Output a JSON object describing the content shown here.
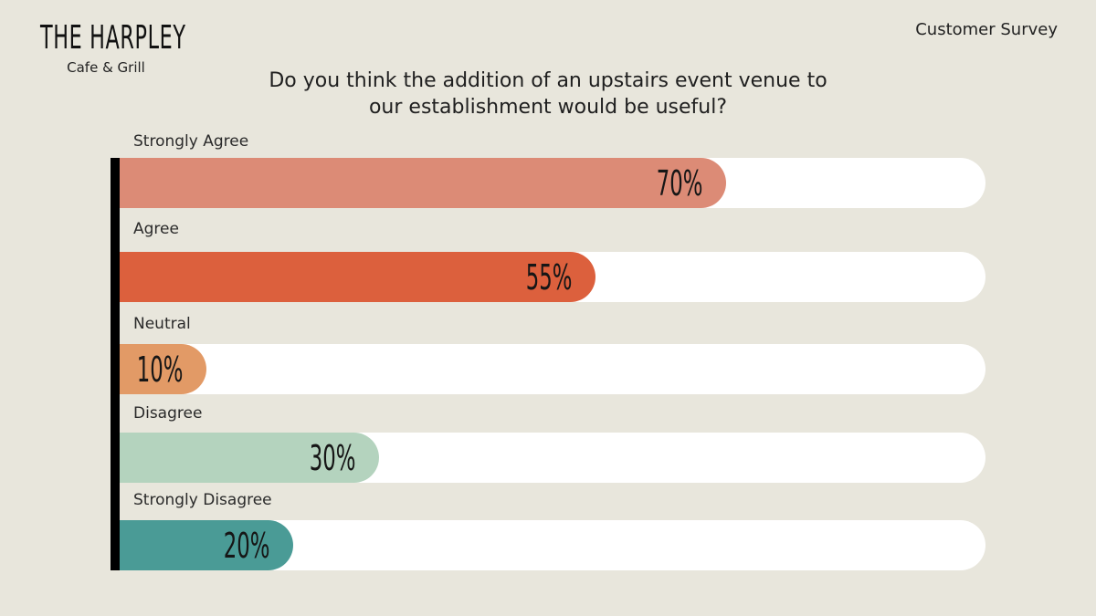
{
  "brand": {
    "name": "THE HARPLEY",
    "tagline": "Cafe & Grill"
  },
  "header": {
    "survey_label": "Customer Survey"
  },
  "question": {
    "line1": "Do you think the addition of an upstairs event venue to",
    "line2": "our establishment would be useful?"
  },
  "chart_data": {
    "type": "bar",
    "orientation": "horizontal",
    "categories": [
      "Strongly Agree",
      "Agree",
      "Neutral",
      "Disagree",
      "Strongly Disagree"
    ],
    "values": [
      70,
      55,
      10,
      30,
      20
    ],
    "value_labels": [
      "70%",
      "55%",
      "10%",
      "30%",
      "20%"
    ],
    "colors": [
      "#DC8B76",
      "#DC603D",
      "#E29A66",
      "#B4D3BE",
      "#4A9B96"
    ],
    "xlim": [
      0,
      100
    ],
    "unit": "%",
    "grid": false
  }
}
